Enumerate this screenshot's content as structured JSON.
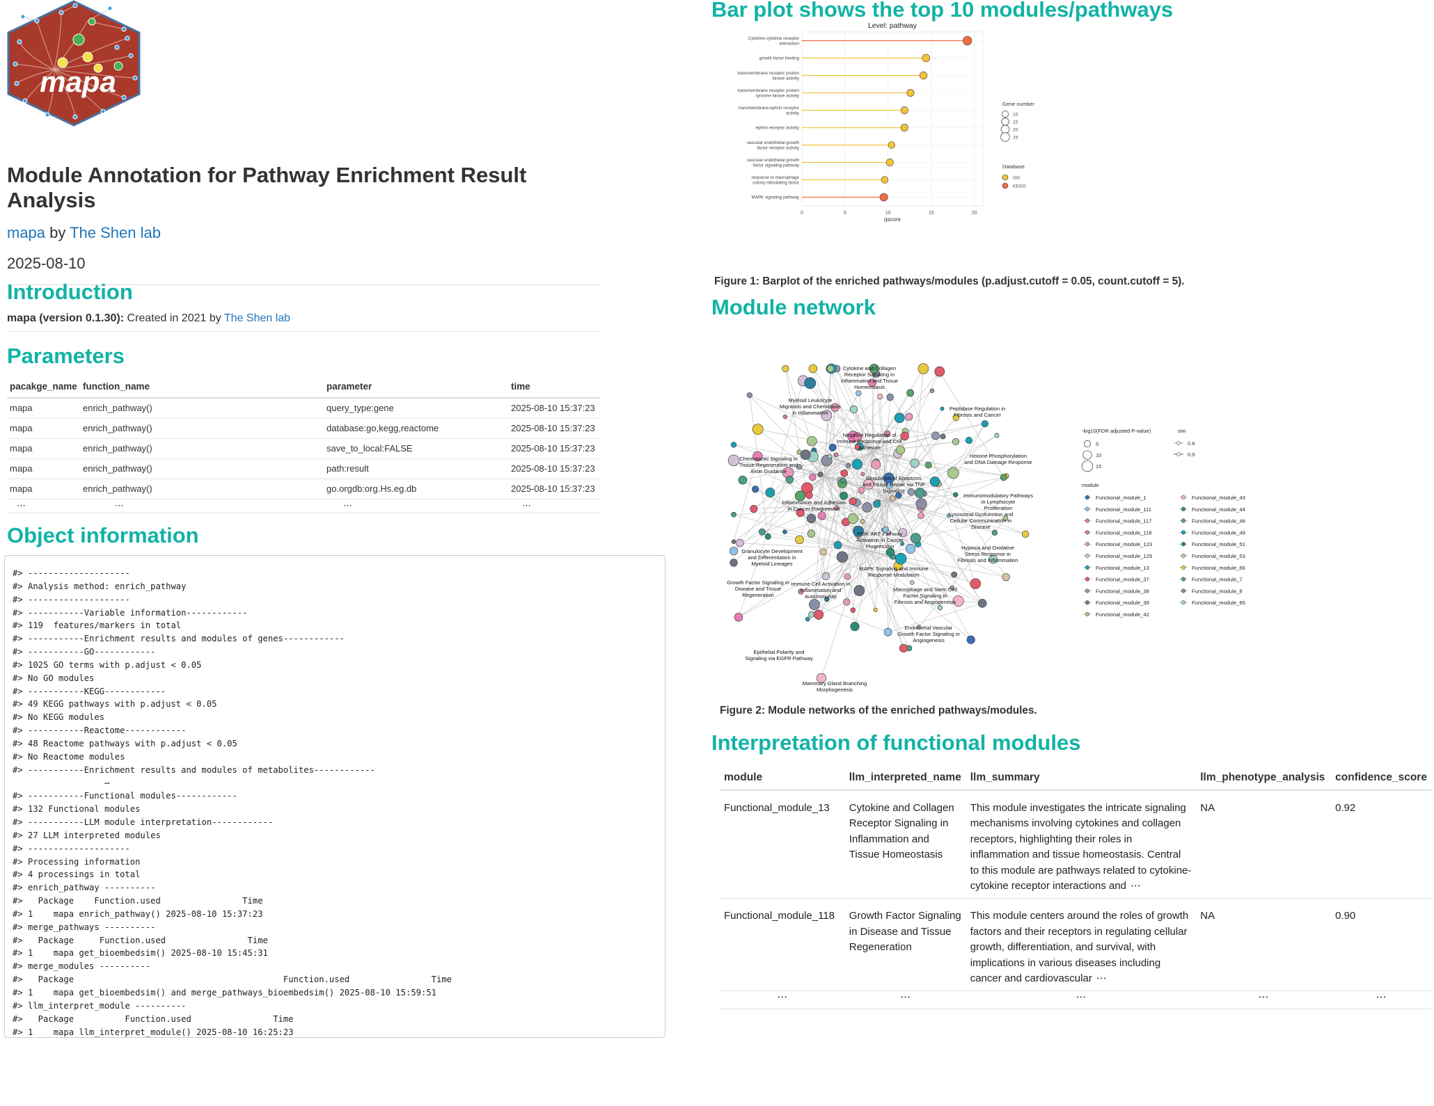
{
  "logo": {
    "text": "mapa"
  },
  "document": {
    "title": "Module Annotation for Pathway Enrichment Result Analysis",
    "byline": {
      "package_link": "mapa",
      "by": " by ",
      "lab_link": "The Shen lab"
    },
    "date": "2025-08-10"
  },
  "introduction": {
    "heading": "Introduction",
    "created_prefix": "mapa (version 0.1.30):",
    "created_text": " Created in 2021 by ",
    "lab_link": "The Shen lab"
  },
  "parameters": {
    "heading": "Parameters",
    "columns": [
      "pacakge_name",
      "function_name",
      "parameter",
      "time"
    ],
    "rows": [
      [
        "mapa",
        "enrich_pathway()",
        "query_type:gene",
        "2025-08-10 15:37:23"
      ],
      [
        "mapa",
        "enrich_pathway()",
        "database:go,kegg,reactome",
        "2025-08-10 15:37:23"
      ],
      [
        "mapa",
        "enrich_pathway()",
        "save_to_local:FALSE",
        "2025-08-10 15:37:23"
      ],
      [
        "mapa",
        "enrich_pathway()",
        "path:result",
        "2025-08-10 15:37:23"
      ],
      [
        "mapa",
        "enrich_pathway()",
        "go.orgdb:org.Hs.eg.db",
        "2025-08-10 15:37:23"
      ]
    ],
    "ellipsis": "⋯"
  },
  "object_information": {
    "heading": "Object information",
    "lines": [
      "#> --------------------",
      "#> Analysis method: enrich_pathway",
      "#> --------------------",
      "#> -----------Variable information------------",
      "#> 119  features/markers in total",
      "#> -----------Enrichment results and modules of genes------------",
      "#> -----------GO------------",
      "#> 1025 GO terms with p.adjust < 0.05",
      "#> No GO modules",
      "#> -----------KEGG------------",
      "#> 49 KEGG pathways with p.adjust < 0.05",
      "#> No KEGG modules",
      "#> -----------Reactome------------",
      "#> 48 Reactome pathways with p.adjust < 0.05",
      "#> No Reactome modules",
      "#> -----------Enrichment results and modules of metabolites------------",
      "                  ⋯",
      "#> -----------Functional modules------------",
      "#> 132 Functional modules",
      "#> -----------LLM module interpretation------------",
      "#> 27 LLM interpreted modules",
      "#> --------------------",
      "#> Processing information",
      "#> 4 processings in total",
      "#> enrich_pathway ----------",
      "#>   Package    Function.used                Time",
      "#> 1    mapa enrich_pathway() 2025-08-10 15:37:23",
      "#> merge_pathways ----------",
      "#>   Package     Function.used                Time",
      "#> 1    mapa get_bioembedsim() 2025-08-10 15:45:31",
      "#> merge_modules ----------",
      "#>   Package                                         Function.used                Time",
      "#> 1    mapa get_bioembedsim() and merge_pathways_bioembedsim() 2025-08-10 15:59:51",
      "#> llm_interpret_module ----------",
      "#>   Package          Function.used                Time",
      "#> 1    mapa llm_interpret_module() 2025-08-10 16:25:23"
    ]
  },
  "bar_section": {
    "heading": "Bar plot shows the top 10 modules/pathways",
    "caption": "Figure 1: Barplot of the enriched pathways/modules (p.adjust.cutoff = 0.05, count.cutoff = 5)."
  },
  "chart_data": {
    "type": "bar",
    "title": "Level: pathway",
    "xlabel": "qscore",
    "ylabel": "",
    "xlim": [
      0,
      21
    ],
    "xticks": [
      0,
      5,
      10,
      15,
      20
    ],
    "categories": [
      "Cytokine-cytokine receptor interaction",
      "growth factor binding",
      "transmembrane receptor protein kinase activity",
      "transmembrane receptor protein tyrosine kinase activity",
      "transmembrane-ephrin receptor activity",
      "ephrin receptor activity",
      "vascular endothelial growth factor receptor activity",
      "vascular endothelial growth factor signaling pathway",
      "response to macrophage colony-stimulating factor",
      "MAPK signaling pathway"
    ],
    "values": [
      19.2,
      14.4,
      14.1,
      12.6,
      11.9,
      11.9,
      10.4,
      10.2,
      9.6,
      9.5
    ],
    "database": [
      "KEGG",
      "GO",
      "GO",
      "GO",
      "GO",
      "GO",
      "GO",
      "GO",
      "GO",
      "KEGG"
    ],
    "gene_number": [
      25,
      17,
      16,
      14,
      14,
      14,
      12,
      14,
      12,
      18
    ],
    "legend": {
      "size_title": "Gene number",
      "size_values": [
        10,
        15,
        20,
        25
      ],
      "color_title": "Database",
      "color_entries": [
        {
          "name": "GO",
          "color": "#f2c33a"
        },
        {
          "name": "KEGG",
          "color": "#ee6b43"
        }
      ],
      "placement": "right"
    }
  },
  "network_section": {
    "heading": "Module network",
    "caption": "Figure 2: Module networks of the enriched pathways/modules.",
    "labels": [
      "Cytokine and Collagen Receptor Signaling in Inflammation and Tissue Homeostasis",
      "Myeloid Leukocyte Migration and Chemotaxis in Inflammation",
      "Peptidase Regulation in Fibrosis and Cancer",
      "Negative Regulation of Immune Response and Cell Adhesion",
      "Histone Phosphorylation and DNA Damage Response",
      "Chemotactic Signaling in Tissue Regeneration and Axon Guidance",
      "Regulation of Apoptosis and Tissue Repair via TNF Signaling",
      "Immunomodulatory Pathways in Lymphocyte Proliferation",
      "Inflammation and Adhesion in Cancer Progression",
      "Lysosomal Dysfunction and Cellular Communication in Disease",
      "PI3K-AKT Pathway Activation in Cancer Progression",
      "Hypoxia and Oxidative Stress Response in Fibrosis and Inflammation",
      "Granulocyte Development and Differentiation in Myeloid Lineages",
      "MAPK Signaling and Immune Response Modulation",
      "Growth Factor Signaling in Disease and Tissue Regeneration",
      "Immune Cell Activation in Inflammation and Autoimmunity",
      "Macrophage and Stem Cell Factor Signaling in Fibrosis and Angiogenesis",
      "Endothelial Vascular Growth Factor Signaling in Angiogenesis",
      "Epithelial Polarity and Signaling via EGFR Pathway",
      "Mammary Gland Branching Morphogenesis"
    ],
    "legend": {
      "size_title": "-log10(FDR adjusted P-value)",
      "size_values": [
        5,
        10,
        15
      ],
      "sim_title": "sim",
      "sim_values": [
        0.8,
        0.9
      ],
      "module_title": "module",
      "modules": [
        {
          "name": "Functional_module_1",
          "color": "#3a6fb0"
        },
        {
          "name": "Functional_module_111",
          "color": "#8fc3e8"
        },
        {
          "name": "Functional_module_117",
          "color": "#e77fb5"
        },
        {
          "name": "Functional_module_118",
          "color": "#cc7fa8"
        },
        {
          "name": "Functional_module_123",
          "color": "#e59bb8"
        },
        {
          "name": "Functional_module_129",
          "color": "#d4c0d8"
        },
        {
          "name": "Functional_module_13",
          "color": "#1aa3b5"
        },
        {
          "name": "Functional_module_37",
          "color": "#e05a6b"
        },
        {
          "name": "Functional_module_38",
          "color": "#9599b3"
        },
        {
          "name": "Functional_module_39",
          "color": "#6f7485"
        },
        {
          "name": "Functional_module_42",
          "color": "#a8c88e"
        },
        {
          "name": "Functional_module_43",
          "color": "#f0b7c8"
        },
        {
          "name": "Functional_module_44",
          "color": "#2e8c78"
        },
        {
          "name": "Functional_module_46",
          "color": "#5aa16a"
        },
        {
          "name": "Functional_module_49",
          "color": "#1e9db0"
        },
        {
          "name": "Functional_module_51",
          "color": "#2a7fa0"
        },
        {
          "name": "Functional_module_53",
          "color": "#d6c2a0"
        },
        {
          "name": "Functional_module_66",
          "color": "#e8c840"
        },
        {
          "name": "Functional_module_7",
          "color": "#4d9c8c"
        },
        {
          "name": "Functional_module_8",
          "color": "#8a8fa5"
        },
        {
          "name": "Functional_module_85",
          "color": "#9fd3c4"
        }
      ]
    }
  },
  "interpretation": {
    "heading": "Interpretation of functional modules",
    "columns": [
      "module",
      "llm_interpreted_name",
      "llm_summary",
      "llm_phenotype_analysis",
      "confidence_score"
    ],
    "rows": [
      {
        "module": "Functional_module_13",
        "name": "Cytokine and Collagen Receptor Signaling in Inflammation and Tissue Homeostasis",
        "summary": "This module investigates the intricate signaling mechanisms involving cytokines and collagen receptors, highlighting their roles in inflammation and tissue homeostasis. Central to this module are pathways related to cytokine-cytokine receptor interactions and",
        "phenotype": "NA",
        "score": "0.92"
      },
      {
        "module": "Functional_module_118",
        "name": "Growth Factor Signaling in Disease and Tissue Regeneration",
        "summary": "This module centers around the roles of growth factors and their receptors in regulating cellular growth, differentiation, and survival, with implications in various diseases including cancer and cardiovascular",
        "phenotype": "NA",
        "score": "0.90"
      }
    ],
    "ellipsis": "⋯"
  }
}
